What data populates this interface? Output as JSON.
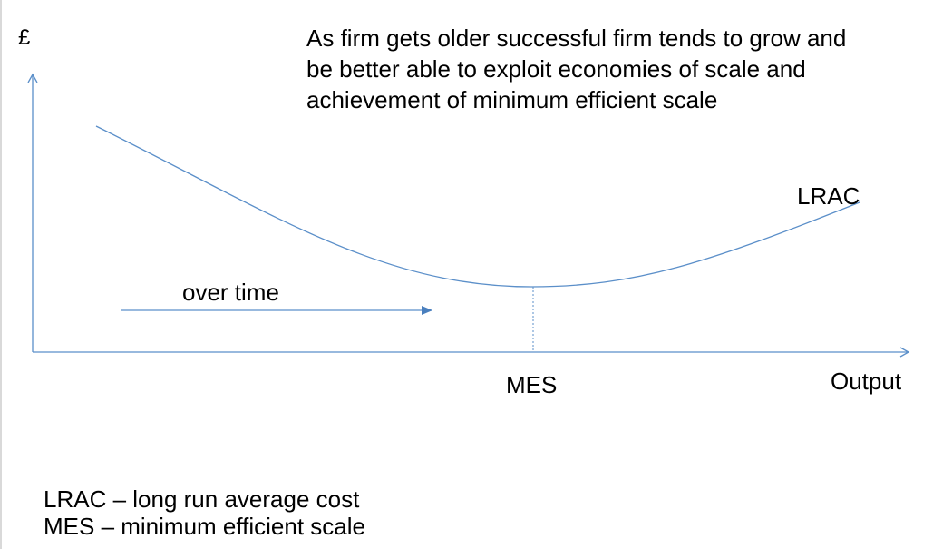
{
  "diagram": {
    "y_axis_label": "£",
    "x_axis_label": "Output",
    "curve_label": "LRAC",
    "min_point_label": "MES",
    "arrow_label": "over time",
    "caption_lines": [
      "As firm gets older successful firm tends to grow and",
      "be better able to exploit economies of scale and",
      "achievement of minimum efficient scale"
    ],
    "legend_lines": [
      "LRAC – long run average cost",
      "MES – minimum efficient scale"
    ]
  },
  "colors": {
    "axis": "#5b8fc9",
    "curve": "#5b8fc9",
    "text": "#000000"
  }
}
